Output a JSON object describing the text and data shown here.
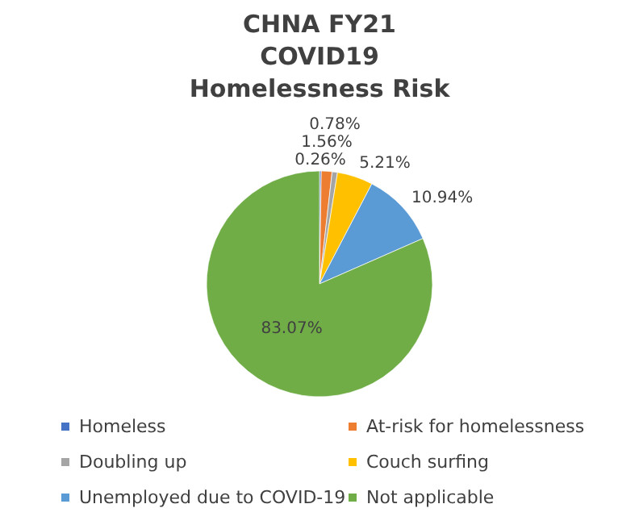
{
  "chart_data": {
    "type": "pie",
    "title": "CHNA FY21\nCOVID19\nHomelessness Risk",
    "categories": [
      "Homeless",
      "At-risk for homelessness",
      "Doubling up",
      "Couch surfing",
      "Unemployed due to COVID-19",
      "Not applicable"
    ],
    "values": [
      0.26,
      1.56,
      0.78,
      5.21,
      10.94,
      83.07
    ],
    "value_labels": [
      "0.26%",
      "1.56%",
      "0.78%",
      "5.21%",
      "10.94%",
      "83.07%"
    ],
    "colors": [
      "#4472c4",
      "#ed7d31",
      "#a5a5a5",
      "#ffc000",
      "#5b9bd5",
      "#70ad47"
    ],
    "legend": "bottom"
  }
}
